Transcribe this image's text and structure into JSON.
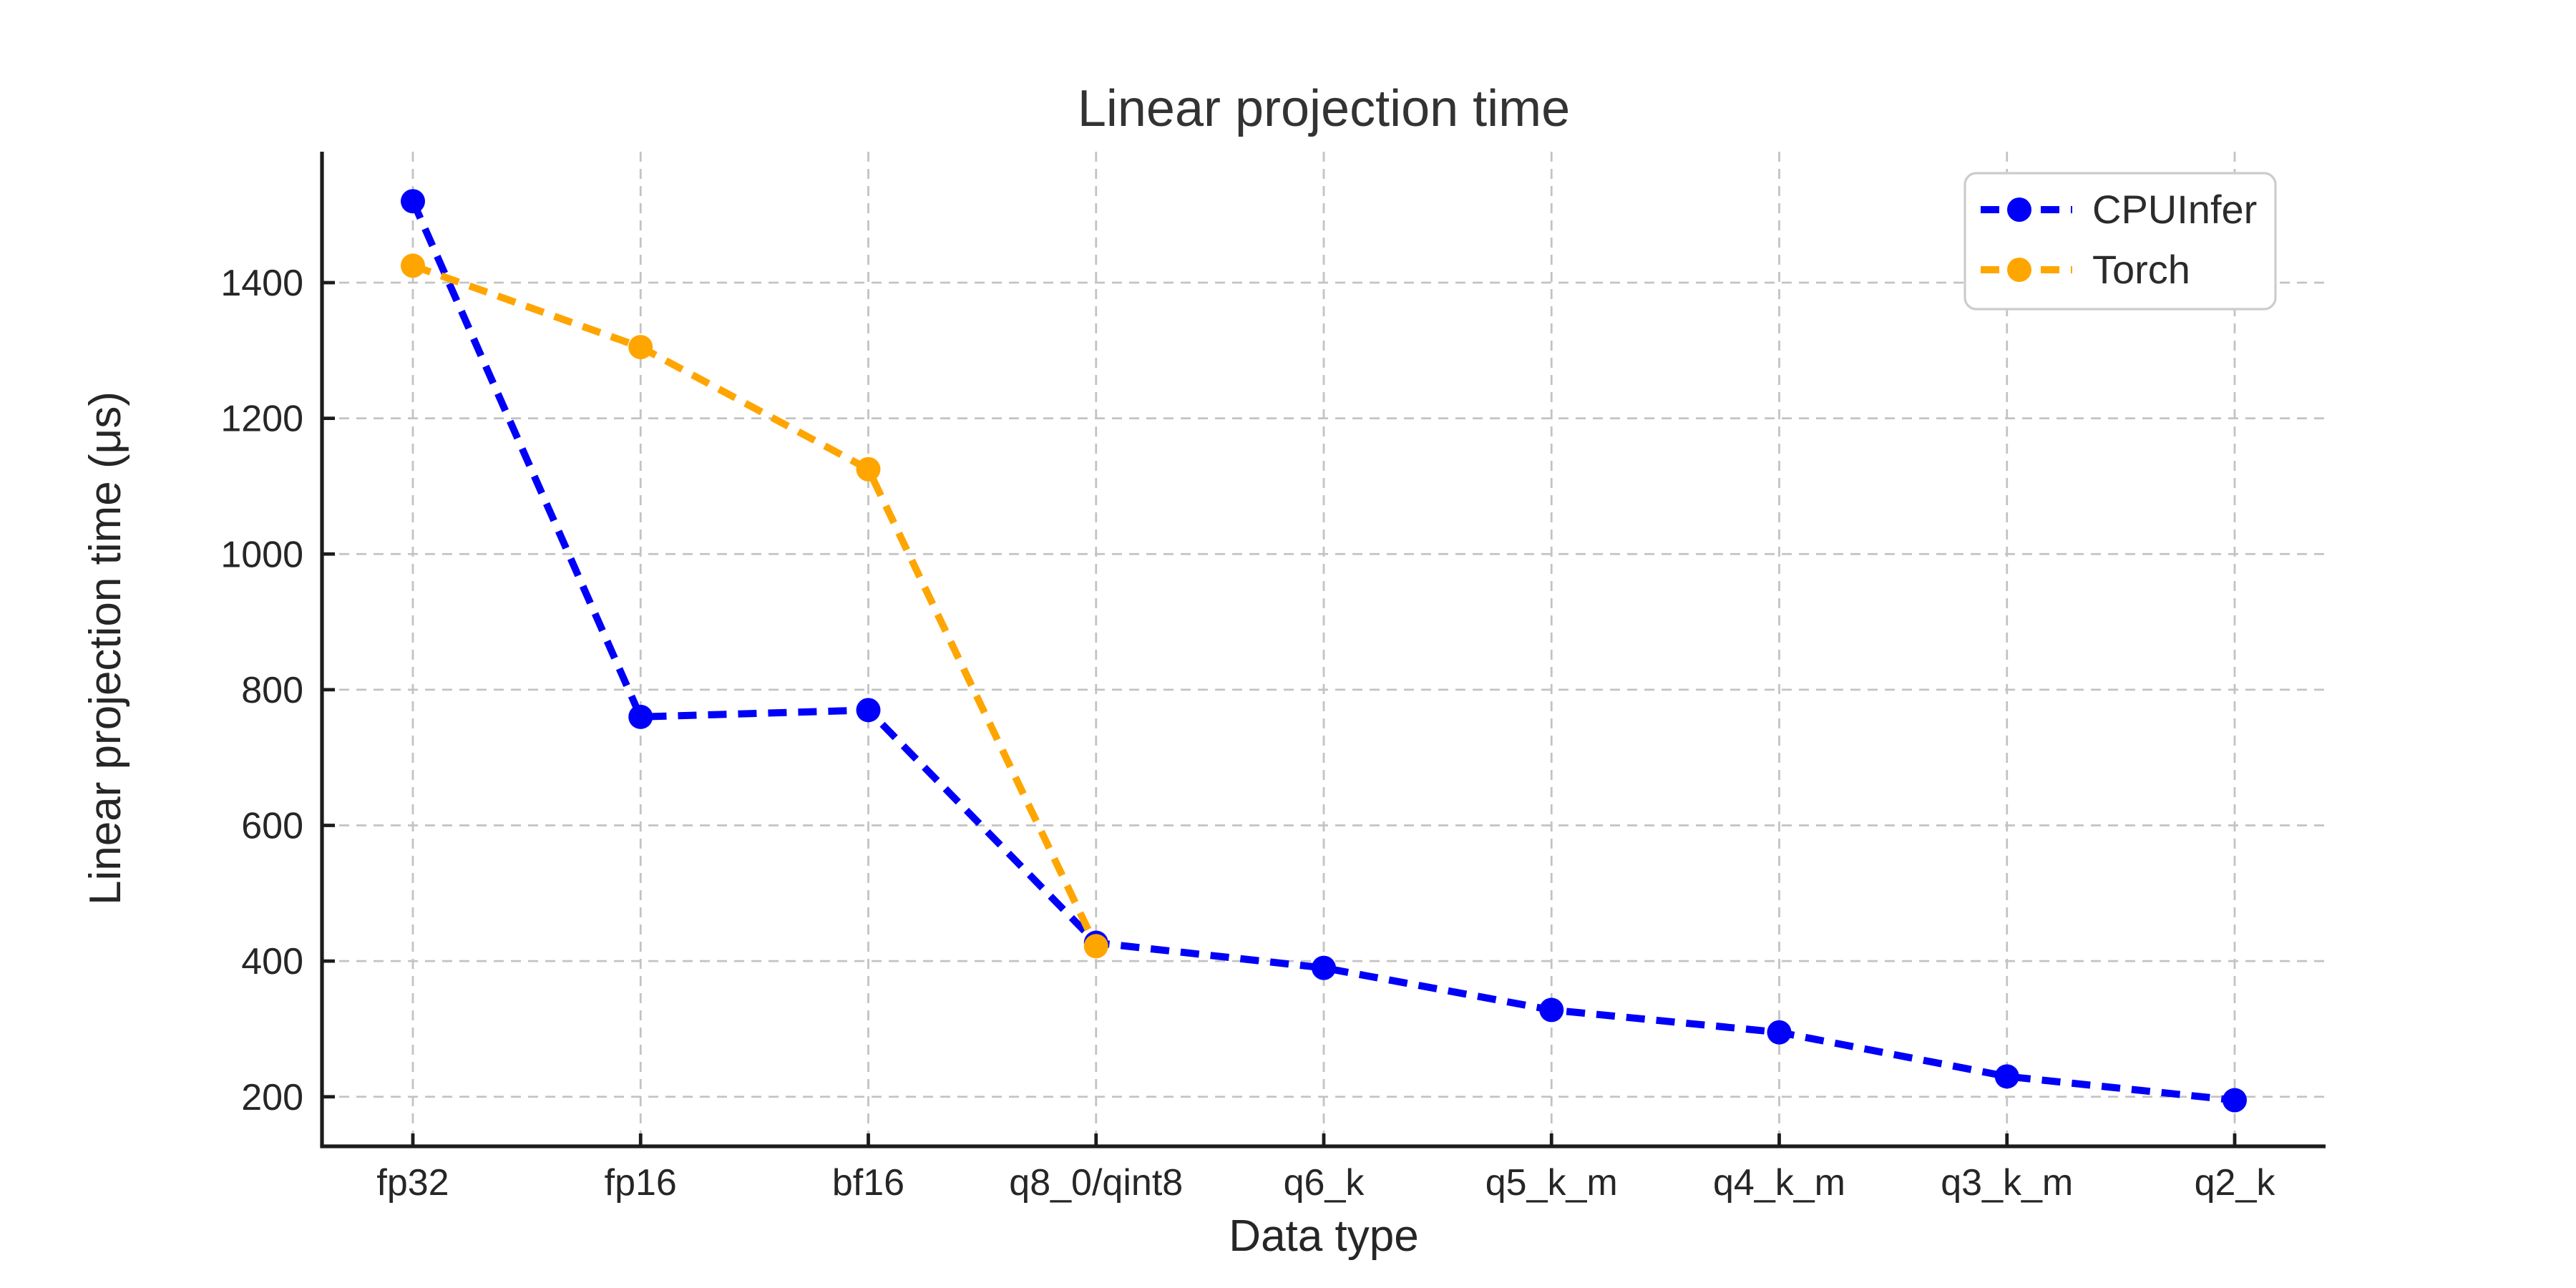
{
  "chart_data": {
    "type": "line",
    "title": "Linear projection time",
    "xlabel": "Data type",
    "ylabel": "Linear projection time (μs)",
    "categories": [
      "fp32",
      "fp16",
      "bf16",
      "q8_0/qint8",
      "q6_k",
      "q5_k_m",
      "q4_k_m",
      "q3_k_m",
      "q2_k"
    ],
    "series": [
      {
        "name": "CPUInfer",
        "color": "#0000fa",
        "values": [
          1520,
          760,
          770,
          427,
          390,
          328,
          295,
          230,
          195
        ]
      },
      {
        "name": "Torch",
        "color": "#ffa500",
        "values": [
          1425,
          1305,
          1125,
          422,
          null,
          null,
          null,
          null,
          null
        ]
      }
    ],
    "yticks": [
      200,
      400,
      600,
      800,
      1000,
      1200,
      1400
    ],
    "ylim": [
      127,
      1593
    ],
    "line_style": "dashed",
    "marker": "circle",
    "grid": true,
    "grid_color": "#c3c3c3",
    "spine_color": "#1c1c1c",
    "legend_position": "upper right"
  }
}
